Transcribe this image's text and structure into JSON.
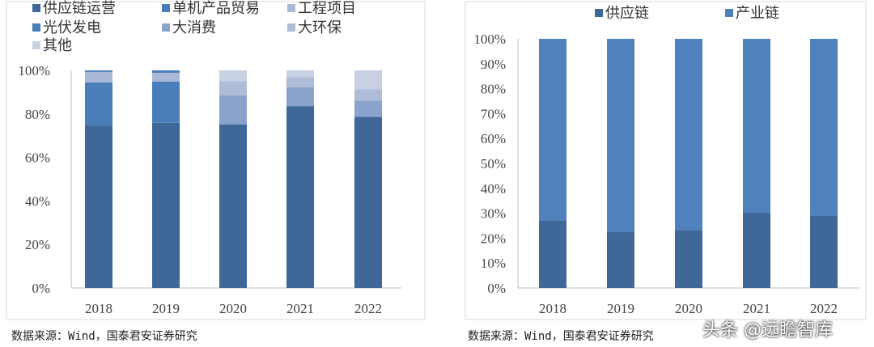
{
  "chart_data": [
    {
      "type": "bar",
      "stacked": true,
      "categories": [
        "2018",
        "2019",
        "2020",
        "2021",
        "2022"
      ],
      "ylim": [
        0,
        100
      ],
      "yticks": [
        "0%",
        "20%",
        "40%",
        "60%",
        "80%",
        "100%"
      ],
      "legend_position": "top",
      "grid": false,
      "series": [
        {
          "name": "供应链运营",
          "color": "#3f6898",
          "values": [
            74.7,
            75.9,
            75.1,
            83.6,
            78.7
          ]
        },
        {
          "name": "单机产品贸易",
          "color": "#4a7ebb",
          "values": [
            19.8,
            18.9,
            0,
            0,
            0
          ]
        },
        {
          "name": "工程项目",
          "color": "#a9b8d6",
          "values": [
            4.8,
            4.1,
            0,
            0,
            0
          ]
        },
        {
          "name": "光伏发电",
          "color": "#4a7ebb",
          "values": [
            0.7,
            1.1,
            0,
            0,
            0
          ]
        },
        {
          "name": "大消费",
          "color": "#8aa3cc",
          "values": [
            0,
            0,
            13.5,
            8.6,
            7.4
          ]
        },
        {
          "name": "大环保",
          "color": "#aebcd8",
          "values": [
            0,
            0,
            6.4,
            4.6,
            5.3
          ]
        },
        {
          "name": "其他",
          "color": "#c8d1e4",
          "values": [
            0,
            0,
            5.0,
            3.2,
            8.6
          ]
        }
      ]
    },
    {
      "type": "bar",
      "stacked": true,
      "categories": [
        "2018",
        "2019",
        "2020",
        "2021",
        "2022"
      ],
      "ylim": [
        0,
        100
      ],
      "yticks": [
        "0%",
        "10%",
        "20%",
        "30%",
        "40%",
        "50%",
        "60%",
        "70%",
        "80%",
        "90%",
        "100%"
      ],
      "legend_position": "top",
      "grid": false,
      "series": [
        {
          "name": "供应链",
          "color": "#3f6898",
          "values": [
            27.2,
            22.4,
            23.3,
            30.2,
            28.9
          ]
        },
        {
          "name": "产业链",
          "color": "#4f81bd",
          "values": [
            72.8,
            77.6,
            76.7,
            69.8,
            71.1
          ]
        }
      ]
    }
  ],
  "source_left": "数据来源：Wind，国泰君安证券研究",
  "source_right": "数据来源：Wind，国泰君安证券研究",
  "watermark": "头条 @远瞻智库"
}
